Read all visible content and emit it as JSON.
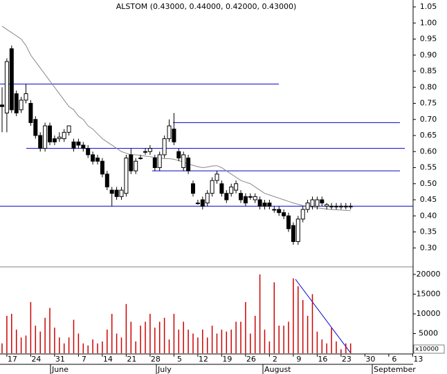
{
  "chart_data": [
    {
      "type": "candlestick",
      "title": "ALSTOM (0.43000, 0.44000, 0.42000, 0.43000)",
      "categories": [
        null,
        "17",
        null,
        null,
        null,
        null,
        "24",
        null,
        null,
        null,
        null,
        "31",
        null,
        null,
        null,
        null,
        "7",
        null,
        null,
        null,
        null,
        "14",
        null,
        null,
        null,
        null,
        "21",
        null,
        null,
        null,
        null,
        "28",
        null,
        null,
        null,
        null,
        "5",
        null,
        null,
        null,
        null,
        "12",
        null,
        null,
        null,
        null,
        "19",
        null,
        null,
        null,
        null,
        "26",
        null,
        null,
        null,
        null,
        "2",
        null,
        null,
        null,
        null,
        "9",
        null,
        null,
        null,
        null,
        "16",
        null,
        null,
        null,
        null,
        "23",
        null,
        null,
        null,
        null,
        "30",
        null,
        null,
        null,
        null,
        "6",
        null,
        null,
        null,
        null,
        "13"
      ],
      "months": [
        "June",
        "July",
        "August",
        "September"
      ],
      "open": [
        0.745,
        0.72,
        0.92,
        0.78,
        0.73,
        0.76,
        0.75,
        0.7,
        0.65,
        0.61,
        0.68,
        0.64,
        0.64,
        0.64,
        0.66,
        0.63,
        0.63,
        0.62,
        0.61,
        0.59,
        0.58,
        0.57,
        0.53,
        0.48,
        0.48,
        0.46,
        0.47,
        0.59,
        0.54,
        0.58,
        0.6,
        0.6,
        0.58,
        0.55,
        0.59,
        0.64,
        0.67,
        0.6,
        0.55,
        0.58,
        0.5,
        0.44,
        0.45,
        0.44,
        0.47,
        0.51,
        0.5,
        0.47,
        0.47,
        0.48,
        0.47,
        0.46,
        0.46,
        0.45,
        0.45,
        0.44,
        0.44,
        0.42,
        0.42,
        0.41,
        0.4,
        0.37,
        0.32,
        0.39,
        0.42,
        0.43,
        0.43,
        0.45,
        0.43,
        0.43,
        0.43,
        0.43,
        0.43,
        0.43,
        null,
        null,
        null,
        null,
        null,
        null,
        null,
        null,
        null,
        null,
        null,
        null,
        null
      ],
      "high": [
        0.8,
        0.89,
        0.93,
        0.79,
        0.77,
        0.81,
        0.76,
        0.71,
        0.66,
        0.69,
        0.69,
        0.65,
        0.66,
        0.67,
        0.68,
        0.64,
        0.64,
        0.63,
        0.62,
        0.6,
        0.59,
        0.58,
        0.54,
        0.49,
        0.49,
        0.49,
        0.59,
        0.61,
        0.58,
        0.59,
        0.61,
        0.62,
        0.59,
        0.6,
        0.65,
        0.7,
        0.72,
        0.61,
        0.6,
        0.59,
        0.51,
        0.45,
        0.46,
        0.48,
        0.52,
        0.54,
        0.51,
        0.48,
        0.5,
        0.51,
        0.48,
        0.47,
        0.47,
        0.47,
        0.46,
        0.45,
        0.45,
        0.43,
        0.43,
        0.42,
        0.41,
        0.38,
        0.4,
        0.43,
        0.45,
        0.46,
        0.46,
        0.46,
        0.44,
        0.44,
        0.44,
        0.44,
        0.44,
        0.44,
        null,
        null,
        null,
        null,
        null,
        null,
        null,
        null,
        null,
        null,
        null,
        null,
        null
      ],
      "low": [
        0.66,
        0.66,
        0.72,
        0.71,
        0.72,
        0.75,
        0.68,
        0.64,
        0.6,
        0.6,
        0.62,
        0.62,
        0.63,
        0.63,
        0.65,
        0.6,
        0.61,
        0.6,
        0.58,
        0.56,
        0.56,
        0.52,
        0.48,
        0.43,
        0.45,
        0.45,
        0.46,
        0.53,
        0.53,
        0.575,
        0.59,
        0.59,
        0.54,
        0.54,
        0.58,
        0.63,
        0.62,
        0.57,
        0.54,
        0.53,
        0.46,
        0.435,
        0.42,
        0.43,
        0.46,
        0.5,
        0.46,
        0.44,
        0.46,
        0.47,
        0.44,
        0.43,
        0.45,
        0.44,
        0.42,
        0.42,
        0.42,
        0.41,
        0.4,
        0.39,
        0.35,
        0.31,
        0.31,
        0.38,
        0.41,
        0.42,
        0.42,
        0.43,
        0.42,
        0.42,
        0.42,
        0.42,
        0.42,
        0.42,
        null,
        null,
        null,
        null,
        null,
        null,
        null,
        null,
        null,
        null,
        null,
        null,
        null
      ],
      "close": [
        0.74,
        0.88,
        0.73,
        0.72,
        0.76,
        0.78,
        0.69,
        0.65,
        0.61,
        0.68,
        0.63,
        0.63,
        0.645,
        0.66,
        0.68,
        0.61,
        0.62,
        0.61,
        0.59,
        0.57,
        0.57,
        0.53,
        0.49,
        0.47,
        0.46,
        0.48,
        0.58,
        0.54,
        0.57,
        0.58,
        0.6,
        0.61,
        0.55,
        0.59,
        0.64,
        0.68,
        0.63,
        0.58,
        0.59,
        0.54,
        0.47,
        0.44,
        0.43,
        0.47,
        0.51,
        0.53,
        0.47,
        0.45,
        0.49,
        0.5,
        0.45,
        0.44,
        0.46,
        0.46,
        0.43,
        0.43,
        0.43,
        0.42,
        0.41,
        0.4,
        0.36,
        0.32,
        0.39,
        0.42,
        0.44,
        0.45,
        0.45,
        0.44,
        0.435,
        0.43,
        0.43,
        0.43,
        0.43,
        0.43,
        null,
        null,
        null,
        null,
        null,
        null,
        null,
        null,
        null,
        null,
        null,
        null,
        null
      ],
      "moving_average": [
        0.99,
        0.98,
        0.97,
        0.96,
        0.95,
        0.93,
        0.9,
        0.88,
        0.86,
        0.84,
        0.82,
        0.8,
        0.78,
        0.76,
        0.74,
        0.73,
        0.71,
        0.7,
        0.68,
        0.67,
        0.655,
        0.64,
        0.63,
        0.62,
        0.61,
        0.6,
        0.595,
        0.59,
        0.59,
        0.588,
        0.586,
        0.584,
        0.582,
        0.58,
        0.578,
        0.578,
        0.576,
        0.572,
        0.567,
        0.562,
        0.557,
        0.553,
        0.55,
        0.552,
        0.555,
        0.556,
        0.55,
        0.54,
        0.53,
        0.52,
        0.51,
        0.505,
        0.5,
        0.49,
        0.48,
        0.47,
        0.465,
        0.46,
        0.455,
        0.45,
        0.445,
        0.44,
        0.436,
        0.432,
        0.43,
        0.427,
        0.425,
        0.423,
        0.421,
        0.42,
        0.419,
        0.418,
        0.417,
        0.416,
        null,
        null,
        null,
        null,
        null,
        null,
        null,
        null,
        null,
        null,
        null,
        null,
        null
      ],
      "moving_average_color": "#888888",
      "color": "#000000",
      "levels": [
        0.81,
        0.69,
        0.61,
        0.54,
        0.43
      ],
      "levels_color": "#0000cc",
      "ylim": [
        0.25,
        1.07
      ],
      "yticks": [
        {
          "value": 0.3,
          "label": "0.30"
        },
        {
          "value": 0.35,
          "label": "0.35"
        },
        {
          "value": 0.4,
          "label": "0.40"
        },
        {
          "value": 0.45,
          "label": "0.45"
        },
        {
          "value": 0.5,
          "label": "0.50"
        },
        {
          "value": 0.55,
          "label": "0.55"
        },
        {
          "value": 0.6,
          "label": "0.60"
        },
        {
          "value": 0.65,
          "label": "0.65"
        },
        {
          "value": 0.7,
          "label": "0.70"
        },
        {
          "value": 0.75,
          "label": "0.75"
        },
        {
          "value": 0.8,
          "label": "0.80"
        },
        {
          "value": 0.85,
          "label": "0.85"
        },
        {
          "value": 0.9,
          "label": "0.90"
        },
        {
          "value": 0.95,
          "label": "0.95"
        },
        {
          "value": 1.0,
          "label": "1.00"
        },
        {
          "value": 1.05,
          "label": "1.05"
        }
      ]
    },
    {
      "type": "bar",
      "annotation": "x10000",
      "color": "#cc0000",
      "values": [
        2500,
        9500,
        10000,
        6000,
        4000,
        4500,
        13000,
        7000,
        5500,
        9000,
        11500,
        6500,
        4000,
        2500,
        4000,
        8500,
        5000,
        2500,
        2000,
        3500,
        2500,
        3000,
        6000,
        10000,
        5000,
        4000,
        12500,
        8000,
        3000,
        7000,
        8000,
        10000,
        6500,
        8000,
        9000,
        3500,
        10000,
        6000,
        8000,
        6000,
        5000,
        4000,
        6000,
        4000,
        7000,
        5000,
        6000,
        5500,
        6000,
        8000,
        8000,
        13000,
        5000,
        9500,
        20000,
        6000,
        3000,
        18000,
        7000,
        7000,
        8000,
        19000,
        17000,
        13500,
        9500,
        15000,
        5500,
        3500,
        2500,
        6500,
        3000,
        1000,
        2500,
        2500,
        null,
        null,
        null,
        null,
        null,
        null,
        null,
        null,
        null,
        null,
        null,
        null,
        null
      ],
      "ylim": [
        0,
        21750
      ],
      "yticks": [
        5000,
        10000,
        15000,
        20000
      ]
    }
  ]
}
